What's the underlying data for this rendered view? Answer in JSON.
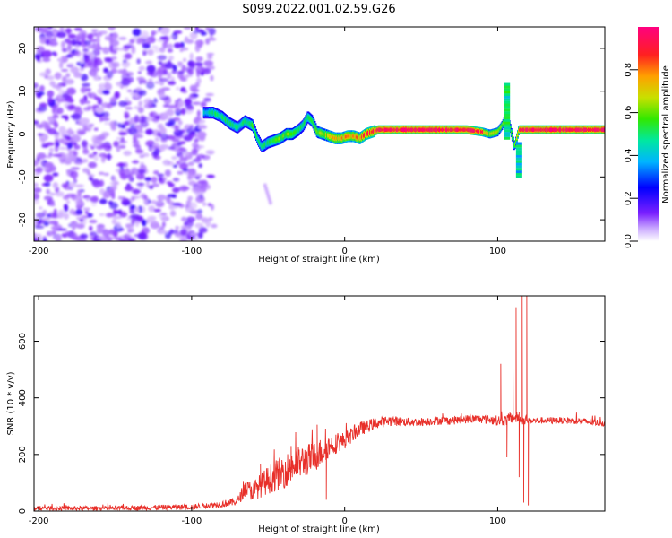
{
  "title": "S099.2022.001.02.59.G26",
  "colors": {
    "snr_line": "#e8302a",
    "frame": "#000000"
  },
  "chart_data": [
    {
      "type": "heatmap",
      "xlabel": "Height of straight line (km)",
      "ylabel": "Frequency (Hz)",
      "xlim": [
        -203,
        170
      ],
      "ylim": [
        -25,
        25
      ],
      "xticks": [
        -200,
        -100,
        0,
        100
      ],
      "yticks": [
        -20,
        -10,
        0,
        10,
        20
      ],
      "colorbar": {
        "label": "Normalized spectral amplitude",
        "range": [
          0,
          1
        ],
        "ticks": [
          "0.0",
          "0.2",
          "0.4",
          "0.6",
          "0.8"
        ],
        "colormap": [
          "#ffffff",
          "#7b20ff",
          "#0000ff",
          "#00b4ff",
          "#00e878",
          "#32e800",
          "#c8e000",
          "#ffa000",
          "#ff2020",
          "#ff0080"
        ]
      },
      "ridge": {
        "x": [
          -92,
          -86,
          -80,
          -75,
          -70,
          -65,
          -60,
          -57,
          -54,
          -50,
          -46,
          -42,
          -38,
          -34,
          -30,
          -27,
          -24,
          -21,
          -18,
          -14,
          -10,
          -6,
          -2,
          2,
          6,
          10,
          14,
          18,
          22,
          40,
          60,
          80,
          90,
          95,
          100,
          103,
          106,
          108,
          111,
          114,
          118,
          130,
          150,
          170
        ],
        "y": [
          5,
          5,
          4,
          2.5,
          1.5,
          3,
          2,
          -1,
          -3,
          -2,
          -1.5,
          -1,
          0,
          0,
          1,
          2,
          4,
          3,
          0.5,
          0,
          -0.5,
          -1,
          -1,
          -0.5,
          -0.5,
          -1,
          0,
          0.5,
          1,
          1,
          1,
          1,
          0.5,
          0,
          0.5,
          2,
          4,
          2,
          -3,
          1,
          1,
          1,
          1,
          1
        ],
        "strength": [
          0.35,
          0.4,
          0.45,
          0.45,
          0.4,
          0.45,
          0.5,
          0.45,
          0.4,
          0.45,
          0.5,
          0.55,
          0.55,
          0.55,
          0.5,
          0.45,
          0.45,
          0.5,
          0.55,
          0.6,
          0.65,
          0.7,
          0.75,
          0.75,
          0.7,
          0.75,
          0.8,
          0.85,
          0.95,
          0.97,
          0.96,
          0.95,
          0.85,
          0.6,
          0.6,
          0.55,
          0.5,
          0.45,
          0.5,
          0.8,
          0.95,
          0.97,
          0.97,
          0.97
        ]
      },
      "noise_region_x": [
        -203,
        -85
      ]
    },
    {
      "type": "line",
      "xlabel": "Height of straight line (km)",
      "ylabel": "SNR (10 * v/v)",
      "xlim": [
        -203,
        170
      ],
      "ylim": [
        0,
        760
      ],
      "xticks": [
        -200,
        -100,
        0,
        100
      ],
      "yticks": [
        0,
        200,
        400,
        600
      ],
      "series": [
        {
          "x": [
            -203,
            -150,
            -100,
            -90,
            -80,
            -70,
            -65,
            -60,
            -50,
            -40,
            -30,
            -20,
            -15,
            -10,
            0,
            10,
            20,
            30,
            40,
            50,
            60,
            70,
            80,
            90,
            100,
            105,
            110,
            113,
            116,
            118,
            120,
            130,
            140,
            150,
            160,
            170
          ],
          "values": [
            10,
            10,
            15,
            20,
            25,
            35,
            80,
            70,
            110,
            140,
            170,
            190,
            210,
            230,
            250,
            290,
            310,
            320,
            315,
            315,
            320,
            320,
            325,
            325,
            320,
            320,
            330,
            330,
            320,
            320,
            320,
            320,
            320,
            320,
            315,
            310
          ],
          "noise_amp": [
            8,
            8,
            10,
            10,
            12,
            15,
            30,
            35,
            50,
            60,
            60,
            55,
            50,
            40,
            30,
            25,
            20,
            18,
            15,
            15,
            15,
            15,
            15,
            15,
            18,
            20,
            20,
            20,
            15,
            15,
            12,
            12,
            12,
            12,
            12,
            12
          ]
        }
      ],
      "spikes": [
        {
          "x": -55,
          "y": 165
        },
        {
          "x": -35,
          "y": 230
        },
        {
          "x": -18,
          "y": 305
        },
        {
          "x": -12,
          "y": 40
        },
        {
          "x": 102,
          "y": 520
        },
        {
          "x": 106,
          "y": 190
        },
        {
          "x": 110,
          "y": 520
        },
        {
          "x": 112,
          "y": 720
        },
        {
          "x": 114,
          "y": 120
        },
        {
          "x": 116,
          "y": 760
        },
        {
          "x": 117,
          "y": 30
        },
        {
          "x": 119,
          "y": 760
        },
        {
          "x": 120,
          "y": 20
        }
      ]
    }
  ]
}
